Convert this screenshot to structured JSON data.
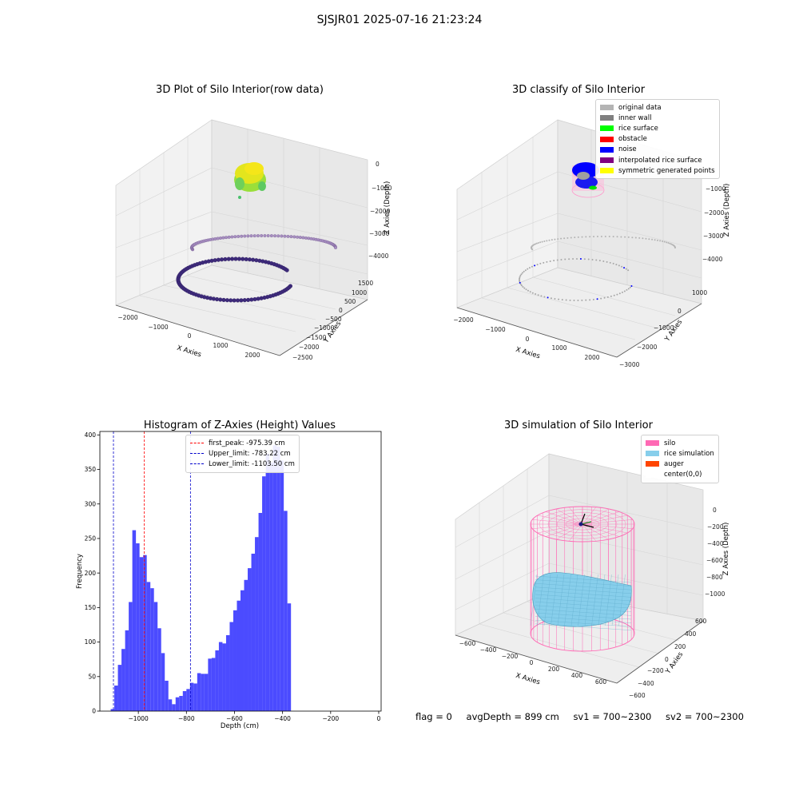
{
  "figure": {
    "suptitle": "SJSJR01 2025-07-16 21:23:24"
  },
  "footer": {
    "flag": "flag = 0",
    "avg_depth": "avgDepth = 899 cm",
    "sv1": "sv1 = 700~2300",
    "sv2": "sv2 = 700~2300"
  },
  "panel_raw": {
    "title": "3D Plot of Silo Interior(row data)",
    "xlabel": "X Axies",
    "ylabel": "Y Axies",
    "zlabel": "Z Axies (Depth)",
    "x_ticks": [
      "−2000",
      "−1000",
      "0",
      "1000",
      "2000"
    ],
    "y_ticks": [
      "1500",
      "1000",
      "500",
      "0",
      "−500",
      "−1000",
      "−1500",
      "−2000",
      "−2500"
    ],
    "z_ticks": [
      "0",
      "−1000",
      "−2000",
      "−3000",
      "−4000"
    ]
  },
  "panel_classify": {
    "title": "3D classify of Silo Interior",
    "xlabel": "X Axies",
    "ylabel": "Y Axies",
    "zlabel": "Z Axies (Depth)",
    "x_ticks": [
      "−2000",
      "−1000",
      "0",
      "1000",
      "2000"
    ],
    "y_ticks": [
      "1000",
      "0",
      "−1000",
      "−2000",
      "−3000"
    ],
    "z_ticks": [
      "−1000",
      "−2000",
      "−3000",
      "−4000"
    ],
    "legend": [
      {
        "label": "original data",
        "color": "#b4b4b4"
      },
      {
        "label": "inner wall",
        "color": "#808080"
      },
      {
        "label": "rice surface",
        "color": "#00ff00"
      },
      {
        "label": "obstacle",
        "color": "#ff0000"
      },
      {
        "label": "noise",
        "color": "#0000ff"
      },
      {
        "label": "interpolated rice surface",
        "color": "#800080"
      },
      {
        "label": "symmetric generated points",
        "color": "#ffff00"
      }
    ]
  },
  "panel_sim": {
    "title": "3D simulation of Silo Interior",
    "xlabel": "X Axies",
    "ylabel": "Y Axies",
    "zlabel": "Z Axies (Depth)",
    "x_ticks": [
      "−600",
      "−400",
      "−200",
      "0",
      "200",
      "400",
      "600"
    ],
    "y_ticks": [
      "600",
      "400",
      "200",
      "0",
      "−200",
      "−400",
      "−600"
    ],
    "z_ticks": [
      "0",
      "−200",
      "−400",
      "−600",
      "−800",
      "−1000"
    ],
    "legend": [
      {
        "label": "silo",
        "color": "#ff69b4"
      },
      {
        "label": "rice simulation",
        "color": "#87ceeb"
      },
      {
        "label": "auger",
        "color": "#ff4500"
      },
      {
        "label": "center(0,0)",
        "color": "#ffffff"
      }
    ]
  },
  "chart_data": {
    "type": "bar",
    "title": "Histogram of Z-Axies (Height) Values",
    "xlabel": "Depth (cm)",
    "ylabel": "Frequency",
    "bar_color": "#4b4bff",
    "xlim": [
      -1160,
      10
    ],
    "ylim": [
      0,
      405
    ],
    "x_ticks": [
      -1000,
      -800,
      -600,
      -400,
      -200,
      0
    ],
    "x_tick_labels": [
      "−1000",
      "−800",
      "−600",
      "−400",
      "−200",
      "0"
    ],
    "y_ticks": [
      0,
      50,
      100,
      150,
      200,
      250,
      300,
      350,
      400
    ],
    "bin_start": -1115,
    "bin_width": 15,
    "values": [
      3,
      37,
      67,
      90,
      117,
      158,
      262,
      243,
      223,
      226,
      187,
      178,
      158,
      120,
      84,
      44,
      17,
      10,
      20,
      22,
      29,
      32,
      41,
      40,
      55,
      54,
      54,
      76,
      77,
      88,
      100,
      98,
      110,
      129,
      146,
      160,
      175,
      190,
      207,
      228,
      252,
      287,
      340,
      373,
      360,
      385,
      383,
      363,
      290,
      156
    ],
    "vlines": [
      {
        "x": -975.39,
        "color": "#ff0000",
        "label": "first_peak: -975.39 cm"
      },
      {
        "x": -783.22,
        "color": "#0000cc",
        "label": "Upper_limit: -783.22 cm"
      },
      {
        "x": -1103.5,
        "color": "#0000cc",
        "label": "Lower_limit: -1103.50 cm"
      }
    ],
    "legend_position": "top-center"
  }
}
